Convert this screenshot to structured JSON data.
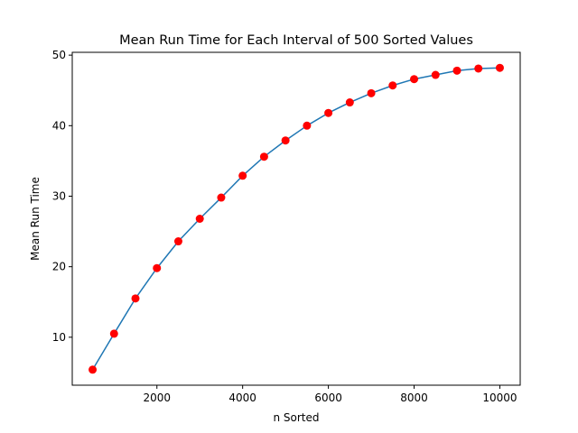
{
  "chart_data": {
    "type": "line",
    "title": "Mean Run Time for Each Interval of 500 Sorted Values",
    "xlabel": "n Sorted",
    "ylabel": "Mean Run Time",
    "xlim": [
      25,
      10475
    ],
    "ylim": [
      3.2,
      50.4
    ],
    "xticks": [
      2000,
      4000,
      6000,
      8000,
      10000
    ],
    "yticks": [
      10,
      20,
      30,
      40,
      50
    ],
    "grid": false,
    "legend": "none",
    "series": [
      {
        "line_color": "#1f77b4",
        "marker_color": "#ff0000",
        "x": [
          500,
          1000,
          1500,
          2000,
          2500,
          3000,
          3500,
          4000,
          4500,
          5000,
          5500,
          6000,
          6500,
          7000,
          7500,
          8000,
          8500,
          9000,
          9500,
          10000
        ],
        "y": [
          5.4,
          10.5,
          15.5,
          19.8,
          23.6,
          26.8,
          29.8,
          32.9,
          35.6,
          37.9,
          40.0,
          41.8,
          43.3,
          44.6,
          45.7,
          46.6,
          47.2,
          47.8,
          48.1,
          48.2
        ]
      }
    ]
  }
}
